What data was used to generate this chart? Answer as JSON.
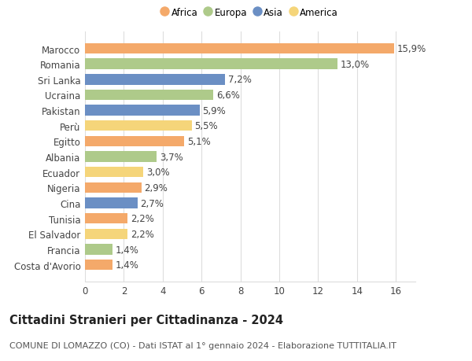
{
  "title": "Cittadini Stranieri per Cittadinanza - 2024",
  "subtitle": "COMUNE DI LOMAZZO (CO) - Dati ISTAT al 1° gennaio 2024 - Elaborazione TUTTITALIA.IT",
  "countries": [
    "Costa d'Avorio",
    "Francia",
    "El Salvador",
    "Tunisia",
    "Cina",
    "Nigeria",
    "Ecuador",
    "Albania",
    "Egitto",
    "Perù",
    "Pakistan",
    "Ucraina",
    "Sri Lanka",
    "Romania",
    "Marocco"
  ],
  "values": [
    1.4,
    1.4,
    2.2,
    2.2,
    2.7,
    2.9,
    3.0,
    3.7,
    5.1,
    5.5,
    5.9,
    6.6,
    7.2,
    13.0,
    15.9
  ],
  "continents": [
    "Africa",
    "Europa",
    "America",
    "Africa",
    "Asia",
    "Africa",
    "America",
    "Europa",
    "Africa",
    "America",
    "Asia",
    "Europa",
    "Asia",
    "Europa",
    "Africa"
  ],
  "colors": {
    "Africa": "#F4A96A",
    "Europa": "#AECA8A",
    "Asia": "#6B8FC4",
    "America": "#F5D57A"
  },
  "legend_order": [
    "Africa",
    "Europa",
    "Asia",
    "America"
  ],
  "xlim": [
    0,
    17
  ],
  "xticks": [
    0,
    2,
    4,
    6,
    8,
    10,
    12,
    14,
    16
  ],
  "bar_height": 0.68,
  "background_color": "#ffffff",
  "grid_color": "#dddddd",
  "label_fontsize": 8.5,
  "title_fontsize": 10.5,
  "subtitle_fontsize": 8.0
}
